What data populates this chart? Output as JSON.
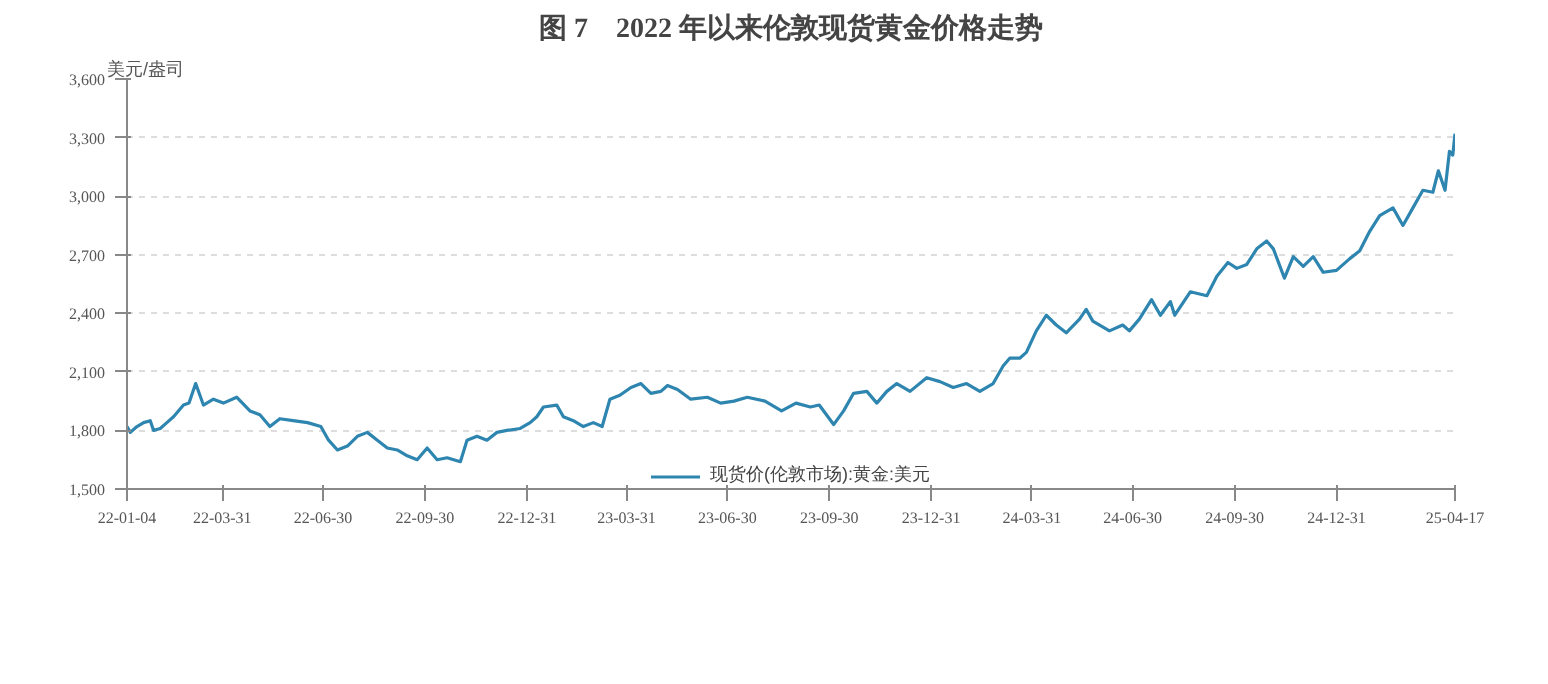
{
  "chart_data": {
    "type": "line",
    "title": "图 7　2022 年以来伦敦现货黄金价格走势",
    "ylabel": "美元/盎司",
    "x": [
      "2022-01-04",
      "2022-01-07",
      "2022-01-13",
      "2022-01-19",
      "2022-01-25",
      "2022-01-28",
      "2022-02-03",
      "2022-02-09",
      "2022-02-15",
      "2022-02-24",
      "2022-03-01",
      "2022-03-07",
      "2022-03-14",
      "2022-03-23",
      "2022-04-01",
      "2022-04-13",
      "2022-04-25",
      "2022-05-04",
      "2022-05-13",
      "2022-05-22",
      "2022-06-03",
      "2022-06-16",
      "2022-06-28",
      "2022-07-05",
      "2022-07-13",
      "2022-07-22",
      "2022-07-31",
      "2022-08-09",
      "2022-08-18",
      "2022-08-27",
      "2022-09-05",
      "2022-09-14",
      "2022-09-23",
      "2022-10-02",
      "2022-10-11",
      "2022-10-20",
      "2022-11-01",
      "2022-11-07",
      "2022-11-16",
      "2022-11-25",
      "2022-12-04",
      "2022-12-13",
      "2022-12-25",
      "2023-01-03",
      "2023-01-09",
      "2023-01-15",
      "2023-01-27",
      "2023-02-02",
      "2023-02-11",
      "2023-02-20",
      "2023-03-01",
      "2023-03-09",
      "2023-03-16",
      "2023-03-25",
      "2023-04-04",
      "2023-04-13",
      "2023-04-22",
      "2023-05-01",
      "2023-05-07",
      "2023-05-16",
      "2023-05-28",
      "2023-06-12",
      "2023-06-24",
      "2023-07-06",
      "2023-07-18",
      "2023-08-03",
      "2023-08-18",
      "2023-08-31",
      "2023-09-13",
      "2023-09-21",
      "2023-10-04",
      "2023-10-13",
      "2023-10-22",
      "2023-11-03",
      "2023-11-12",
      "2023-11-21",
      "2023-11-30",
      "2023-12-12",
      "2023-12-27",
      "2024-01-08",
      "2024-01-20",
      "2024-02-01",
      "2024-02-13",
      "2024-02-25",
      "2024-03-05",
      "2024-03-11",
      "2024-03-20",
      "2024-03-26",
      "2024-04-04",
      "2024-04-13",
      "2024-04-22",
      "2024-05-01",
      "2024-05-13",
      "2024-05-19",
      "2024-05-25",
      "2024-06-09",
      "2024-06-21",
      "2024-06-27",
      "2024-07-06",
      "2024-07-17",
      "2024-07-25",
      "2024-08-03",
      "2024-08-07",
      "2024-08-21",
      "2024-09-05",
      "2024-09-14",
      "2024-09-24",
      "2024-10-02",
      "2024-10-11",
      "2024-10-20",
      "2024-10-29",
      "2024-11-04",
      "2024-11-14",
      "2024-11-22",
      "2024-12-01",
      "2024-12-10",
      "2024-12-19",
      "2024-12-31",
      "2025-01-12",
      "2025-01-21",
      "2025-01-30",
      "2025-02-08",
      "2025-02-20",
      "2025-03-01",
      "2025-03-10",
      "2025-03-19",
      "2025-03-28",
      "2025-04-02",
      "2025-04-08",
      "2025-04-12",
      "2025-04-15",
      "2025-04-17"
    ],
    "series": [
      {
        "name": "现货价(伦敦市场):黄金:美元",
        "color": "#2e86b0",
        "values": [
          1820,
          1790,
          1820,
          1840,
          1850,
          1800,
          1810,
          1840,
          1870,
          1930,
          1940,
          2040,
          1930,
          1960,
          1940,
          1970,
          1900,
          1880,
          1820,
          1860,
          1850,
          1840,
          1820,
          1750,
          1700,
          1720,
          1770,
          1790,
          1750,
          1710,
          1700,
          1670,
          1650,
          1710,
          1650,
          1660,
          1640,
          1750,
          1770,
          1750,
          1790,
          1800,
          1810,
          1840,
          1870,
          1920,
          1930,
          1870,
          1850,
          1820,
          1840,
          1820,
          1960,
          1980,
          2020,
          2040,
          1990,
          2000,
          2030,
          2010,
          1960,
          1970,
          1940,
          1950,
          1970,
          1950,
          1900,
          1940,
          1920,
          1930,
          1830,
          1900,
          1990,
          2000,
          1940,
          2000,
          2040,
          2000,
          2070,
          2050,
          2020,
          2040,
          2000,
          2040,
          2130,
          2170,
          2170,
          2200,
          2310,
          2390,
          2340,
          2300,
          2370,
          2420,
          2360,
          2310,
          2340,
          2310,
          2370,
          2470,
          2390,
          2460,
          2390,
          2510,
          2490,
          2590,
          2660,
          2630,
          2650,
          2730,
          2770,
          2730,
          2580,
          2690,
          2640,
          2690,
          2610,
          2620,
          2680,
          2720,
          2820,
          2900,
          2940,
          2850,
          2940,
          3030,
          3020,
          3130,
          3030,
          3230,
          3210,
          3320
        ]
      }
    ],
    "xlim": [
      "2022-01-04",
      "2025-04-17"
    ],
    "xticks": [
      {
        "value": "2022-01-04",
        "label": "22-01-04"
      },
      {
        "value": "2022-03-31",
        "label": "22-03-31"
      },
      {
        "value": "2022-06-30",
        "label": "22-06-30"
      },
      {
        "value": "2022-09-30",
        "label": "22-09-30"
      },
      {
        "value": "2022-12-31",
        "label": "22-12-31"
      },
      {
        "value": "2023-03-31",
        "label": "23-03-31"
      },
      {
        "value": "2023-06-30",
        "label": "23-06-30"
      },
      {
        "value": "2023-09-30",
        "label": "23-09-30"
      },
      {
        "value": "2023-12-31",
        "label": "23-12-31"
      },
      {
        "value": "2024-03-31",
        "label": "24-03-31"
      },
      {
        "value": "2024-06-30",
        "label": "24-06-30"
      },
      {
        "value": "2024-09-30",
        "label": "24-09-30"
      },
      {
        "value": "2024-12-31",
        "label": "24-12-31"
      },
      {
        "value": "2025-04-17",
        "label": "25-04-17"
      }
    ],
    "ylim": [
      1500,
      3600
    ],
    "yticks": [
      {
        "value": 1500,
        "label": "1,500"
      },
      {
        "value": 1800,
        "label": "1,800"
      },
      {
        "value": 2100,
        "label": "2,100"
      },
      {
        "value": 2400,
        "label": "2,400"
      },
      {
        "value": 2700,
        "label": "2,700"
      },
      {
        "value": 3000,
        "label": "3,000"
      },
      {
        "value": 3300,
        "label": "3,300"
      },
      {
        "value": 3600,
        "label": "3,600"
      }
    ],
    "grid": "y",
    "legend": "bottom",
    "marker": "none",
    "line_style": "solid"
  }
}
